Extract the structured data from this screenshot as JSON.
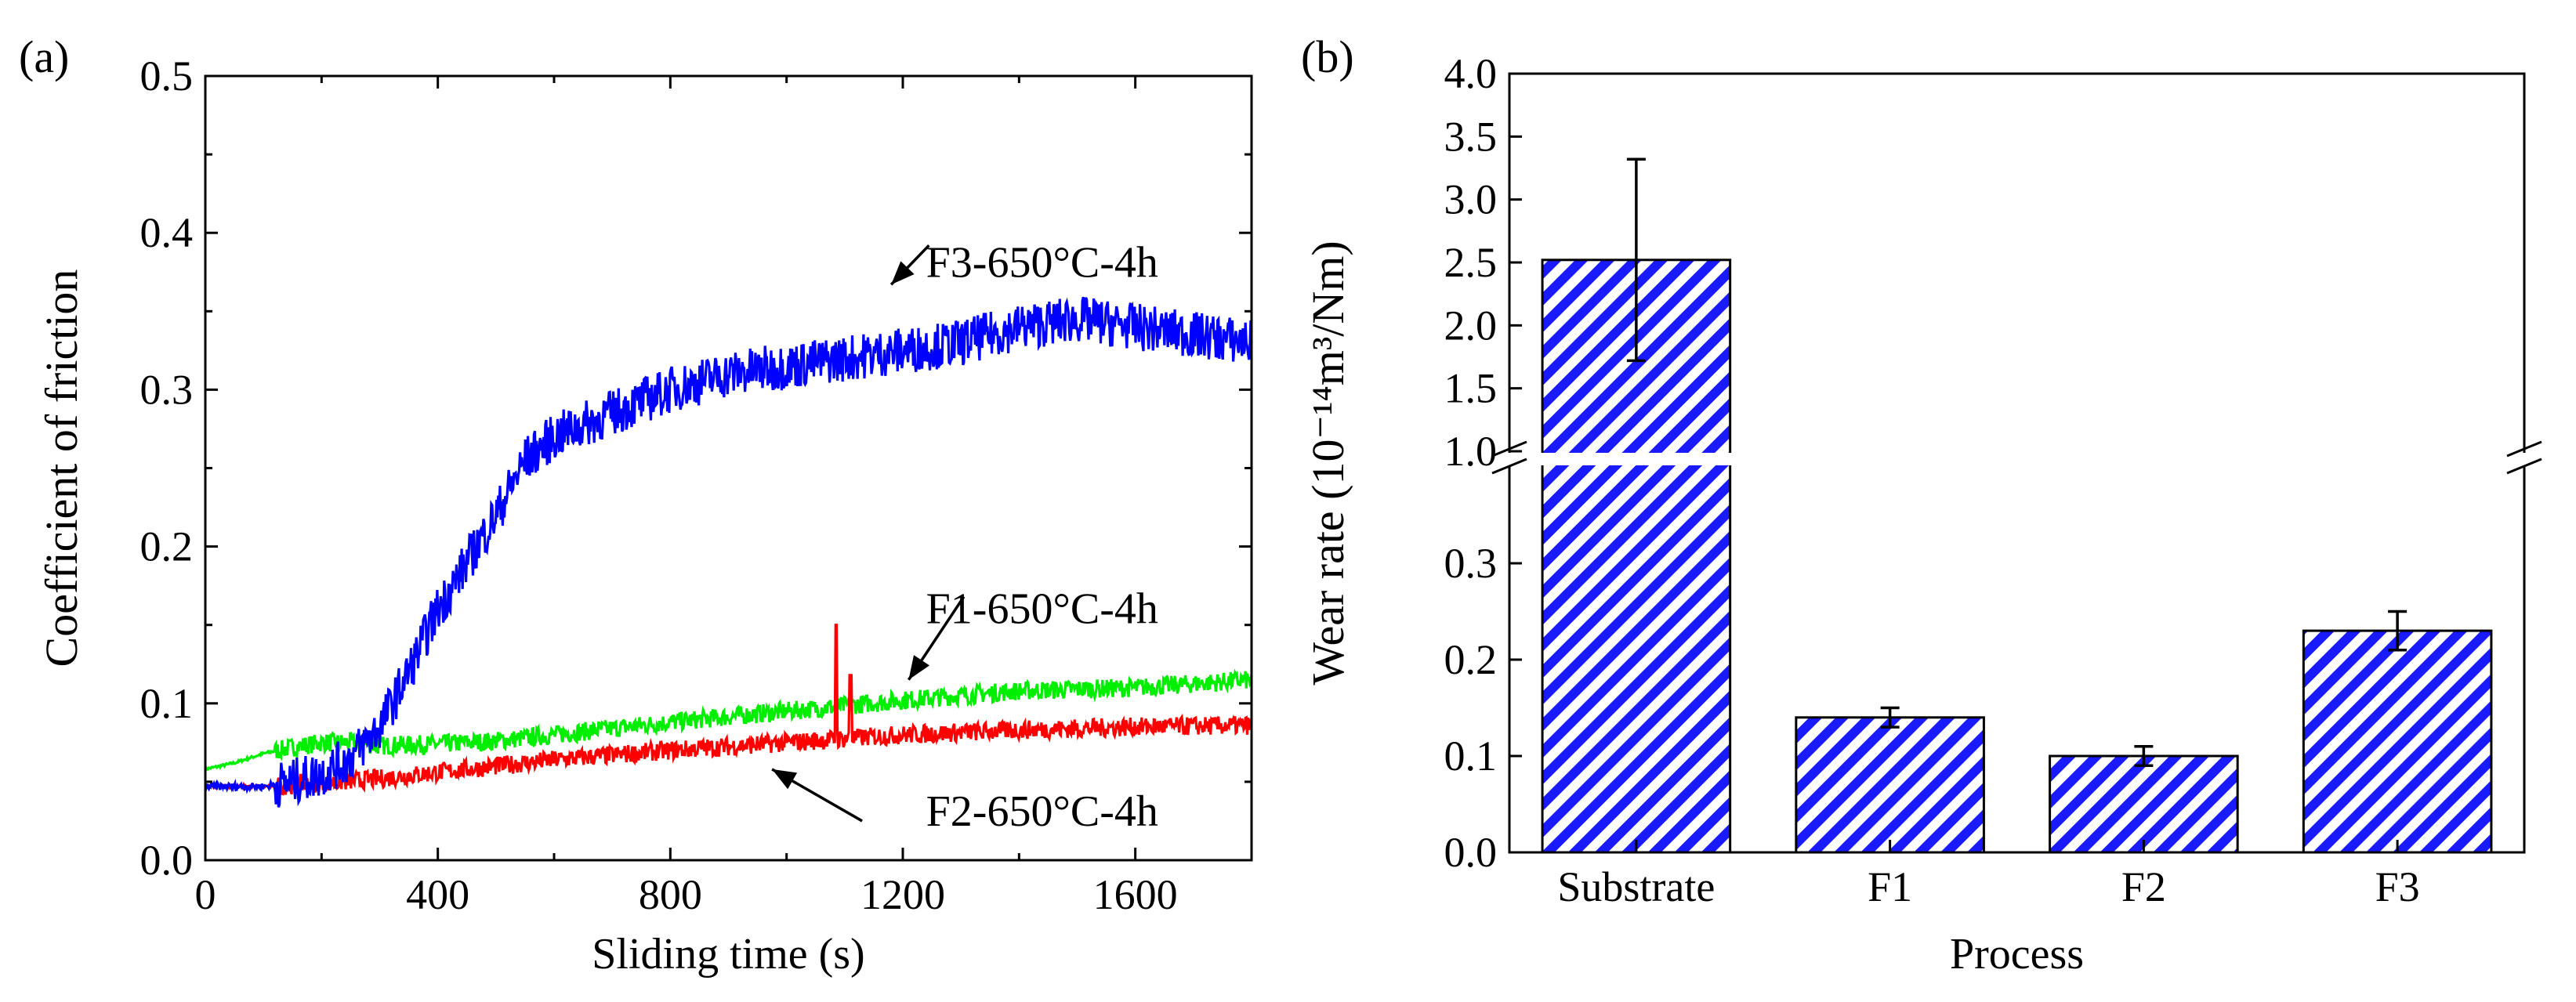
{
  "chart_data": [
    {
      "panel": "(a)",
      "type": "line",
      "xlabel": "Sliding time (s)",
      "ylabel": "Coefficient of friction",
      "xlim": [
        0,
        1800
      ],
      "ylim": [
        0,
        0.5
      ],
      "xticks": [
        0,
        400,
        800,
        1200,
        1600
      ],
      "yticks": [
        0.0,
        0.1,
        0.2,
        0.3,
        0.4,
        0.5
      ],
      "grid": false,
      "legend": "none",
      "series": [
        {
          "name": "F3-650°C-4h",
          "color": "#0000ff",
          "x": [
            0,
            100,
            150,
            200,
            250,
            300,
            350,
            400,
            450,
            500,
            550,
            600,
            700,
            800,
            900,
            1000,
            1100,
            1200,
            1300,
            1400,
            1500,
            1600,
            1700,
            1800
          ],
          "y": [
            0.047,
            0.047,
            0.05,
            0.055,
            0.065,
            0.085,
            0.12,
            0.16,
            0.19,
            0.22,
            0.255,
            0.27,
            0.285,
            0.3,
            0.31,
            0.315,
            0.32,
            0.325,
            0.33,
            0.34,
            0.345,
            0.34,
            0.335,
            0.33
          ],
          "noise": 0.015
        },
        {
          "name": "F1-650°C-4h",
          "color": "#00ee00",
          "x": [
            0,
            50,
            100,
            150,
            200,
            250,
            300,
            400,
            500,
            600,
            800,
            1000,
            1200,
            1400,
            1600,
            1800
          ],
          "y": [
            0.058,
            0.062,
            0.068,
            0.072,
            0.075,
            0.075,
            0.073,
            0.074,
            0.076,
            0.08,
            0.088,
            0.095,
            0.102,
            0.108,
            0.11,
            0.115
          ],
          "noise": 0.006
        },
        {
          "name": "F2-650°C-4h",
          "color": "#ff0000",
          "x": [
            0,
            100,
            200,
            300,
            400,
            500,
            600,
            800,
            1000,
            1200,
            1400,
            1600,
            1800
          ],
          "y": [
            0.047,
            0.047,
            0.049,
            0.052,
            0.056,
            0.06,
            0.064,
            0.07,
            0.075,
            0.08,
            0.083,
            0.085,
            0.086
          ],
          "noise": 0.006,
          "spikes": [
            [
              1085,
              0.15
            ],
            [
              1110,
              0.118
            ]
          ]
        }
      ],
      "annotations": [
        {
          "text": "F3-650°C-4h",
          "x": 1240,
          "y": 0.372
        },
        {
          "text": "F1-650°C-4h",
          "x": 1240,
          "y": 0.151
        },
        {
          "text": "F2-650°C-4h",
          "x": 1240,
          "y": 0.022
        }
      ]
    },
    {
      "panel": "(b)",
      "type": "bar",
      "xlabel": "Process",
      "ylabel": "Wear rate (10⁻¹⁴m³/Nm)",
      "categories": [
        "Substrate",
        "F1",
        "F2",
        "F3"
      ],
      "values": [
        2.52,
        0.14,
        0.1,
        0.23
      ],
      "errors": [
        0.8,
        0.01,
        0.01,
        0.02
      ],
      "broken_axis": {
        "lower": [
          0,
          0.4
        ],
        "upper": [
          1.0,
          4.0
        ]
      },
      "yticks_lower": [
        0.0,
        0.1,
        0.2,
        0.3
      ],
      "yticks_upper": [
        1.0,
        1.5,
        2.0,
        2.5,
        3.0,
        3.5,
        4.0
      ],
      "bar_color": "#1a1aff",
      "hatch": "diagonal",
      "grid": false,
      "legend": "none"
    }
  ]
}
